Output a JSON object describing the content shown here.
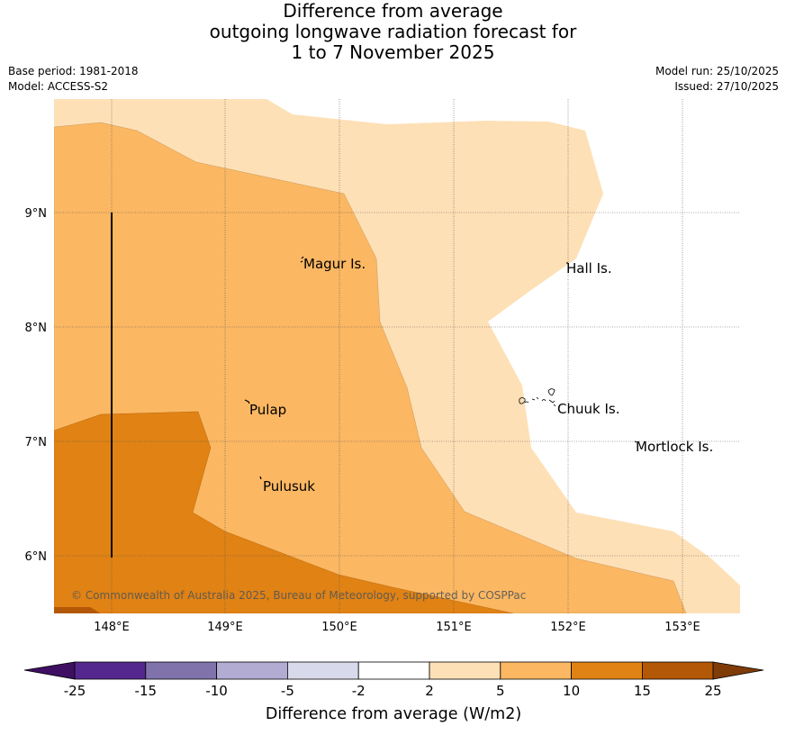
{
  "title": {
    "line1": "Difference from average",
    "line2": "outgoing longwave radiation forecast for",
    "line3": "1 to 7 November 2025"
  },
  "meta": {
    "base_period": "Base period: 1981-2018",
    "model": "Model: ACCESS-S2",
    "model_run": "Model run: 25/10/2025",
    "issued": "Issued: 27/10/2025"
  },
  "map": {
    "lat_labels": [
      "9°N",
      "8°N",
      "7°N",
      "6°N"
    ],
    "lon_labels": [
      "148°E",
      "149°E",
      "150°E",
      "151°E",
      "152°E",
      "153°E"
    ],
    "places": [
      "Magur Is.",
      "Hall Is.",
      "Pulap",
      "Chuuk Is.",
      "Mortlock Is.",
      "Pulusuk"
    ],
    "copyright": "© Commonwealth of Australia 2025, Bureau of Meteorology, supported by COSPPac"
  },
  "colorbar": {
    "tick_labels": [
      "-25",
      "-15",
      "-10",
      "-5",
      "-2",
      "2",
      "5",
      "10",
      "15",
      "25"
    ],
    "colors": [
      "#3f0f63",
      "#54278f",
      "#8073ac",
      "#b2abd2",
      "#d8daeb",
      "#ffffff",
      "#fee0b6",
      "#fbb762",
      "#e08214",
      "#b35806",
      "#7f3b08"
    ],
    "label": "Difference from average (W/m2)"
  }
}
